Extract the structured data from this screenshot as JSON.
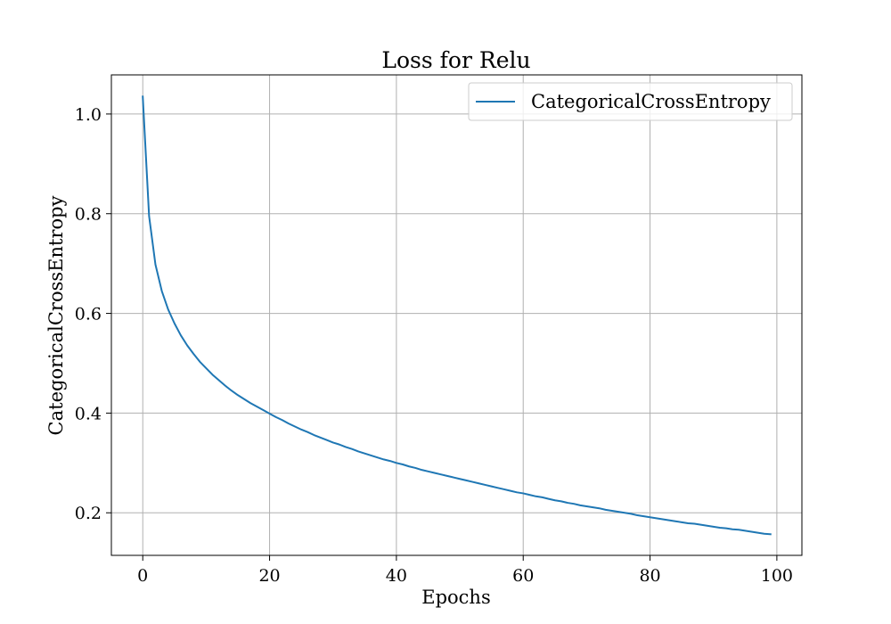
{
  "chart_data": {
    "type": "line",
    "title": "Loss for Relu",
    "xlabel": "Epochs",
    "ylabel": "CategoricalCrossEntropy",
    "xlim": [
      -4.95,
      103.95
    ],
    "ylim": [
      0.1146,
      1.0785
    ],
    "xticks": [
      0,
      20,
      40,
      60,
      80,
      100
    ],
    "yticks": [
      0.2,
      0.4,
      0.6,
      0.8,
      1.0
    ],
    "xtick_labels": [
      "0",
      "20",
      "40",
      "60",
      "80",
      "100"
    ],
    "ytick_labels": [
      "0.2",
      "0.4",
      "0.6",
      "0.8",
      "1.0"
    ],
    "grid": true,
    "legend_position": "top-right",
    "series": [
      {
        "name": "CategoricalCrossEntropy",
        "color": "#1f77b4",
        "x": [
          0,
          1,
          2,
          3,
          4,
          5,
          6,
          7,
          8,
          9,
          10,
          11,
          12,
          13,
          14,
          15,
          16,
          17,
          18,
          19,
          20,
          21,
          22,
          23,
          24,
          25,
          26,
          27,
          28,
          29,
          30,
          31,
          32,
          33,
          34,
          35,
          36,
          37,
          38,
          39,
          40,
          41,
          42,
          43,
          44,
          45,
          46,
          47,
          48,
          49,
          50,
          51,
          52,
          53,
          54,
          55,
          56,
          57,
          58,
          59,
          60,
          61,
          62,
          63,
          64,
          65,
          66,
          67,
          68,
          69,
          70,
          71,
          72,
          73,
          74,
          75,
          76,
          77,
          78,
          79,
          80,
          81,
          82,
          83,
          84,
          85,
          86,
          87,
          88,
          89,
          90,
          91,
          92,
          93,
          94,
          95,
          96,
          97,
          98,
          99
        ],
        "values": [
          1.035,
          0.795,
          0.698,
          0.645,
          0.608,
          0.58,
          0.556,
          0.536,
          0.519,
          0.503,
          0.49,
          0.477,
          0.466,
          0.455,
          0.445,
          0.436,
          0.428,
          0.42,
          0.413,
          0.406,
          0.399,
          0.392,
          0.386,
          0.379,
          0.373,
          0.367,
          0.362,
          0.356,
          0.351,
          0.346,
          0.341,
          0.337,
          0.332,
          0.328,
          0.323,
          0.319,
          0.315,
          0.311,
          0.307,
          0.304,
          0.3,
          0.297,
          0.293,
          0.29,
          0.286,
          0.283,
          0.28,
          0.277,
          0.274,
          0.271,
          0.268,
          0.265,
          0.262,
          0.259,
          0.256,
          0.253,
          0.25,
          0.247,
          0.244,
          0.241,
          0.239,
          0.236,
          0.233,
          0.231,
          0.228,
          0.225,
          0.223,
          0.22,
          0.218,
          0.215,
          0.213,
          0.211,
          0.209,
          0.206,
          0.204,
          0.202,
          0.2,
          0.198,
          0.195,
          0.193,
          0.191,
          0.189,
          0.187,
          0.185,
          0.183,
          0.181,
          0.179,
          0.178,
          0.176,
          0.174,
          0.172,
          0.17,
          0.169,
          0.167,
          0.166,
          0.164,
          0.162,
          0.16,
          0.158,
          0.157
        ]
      }
    ]
  }
}
